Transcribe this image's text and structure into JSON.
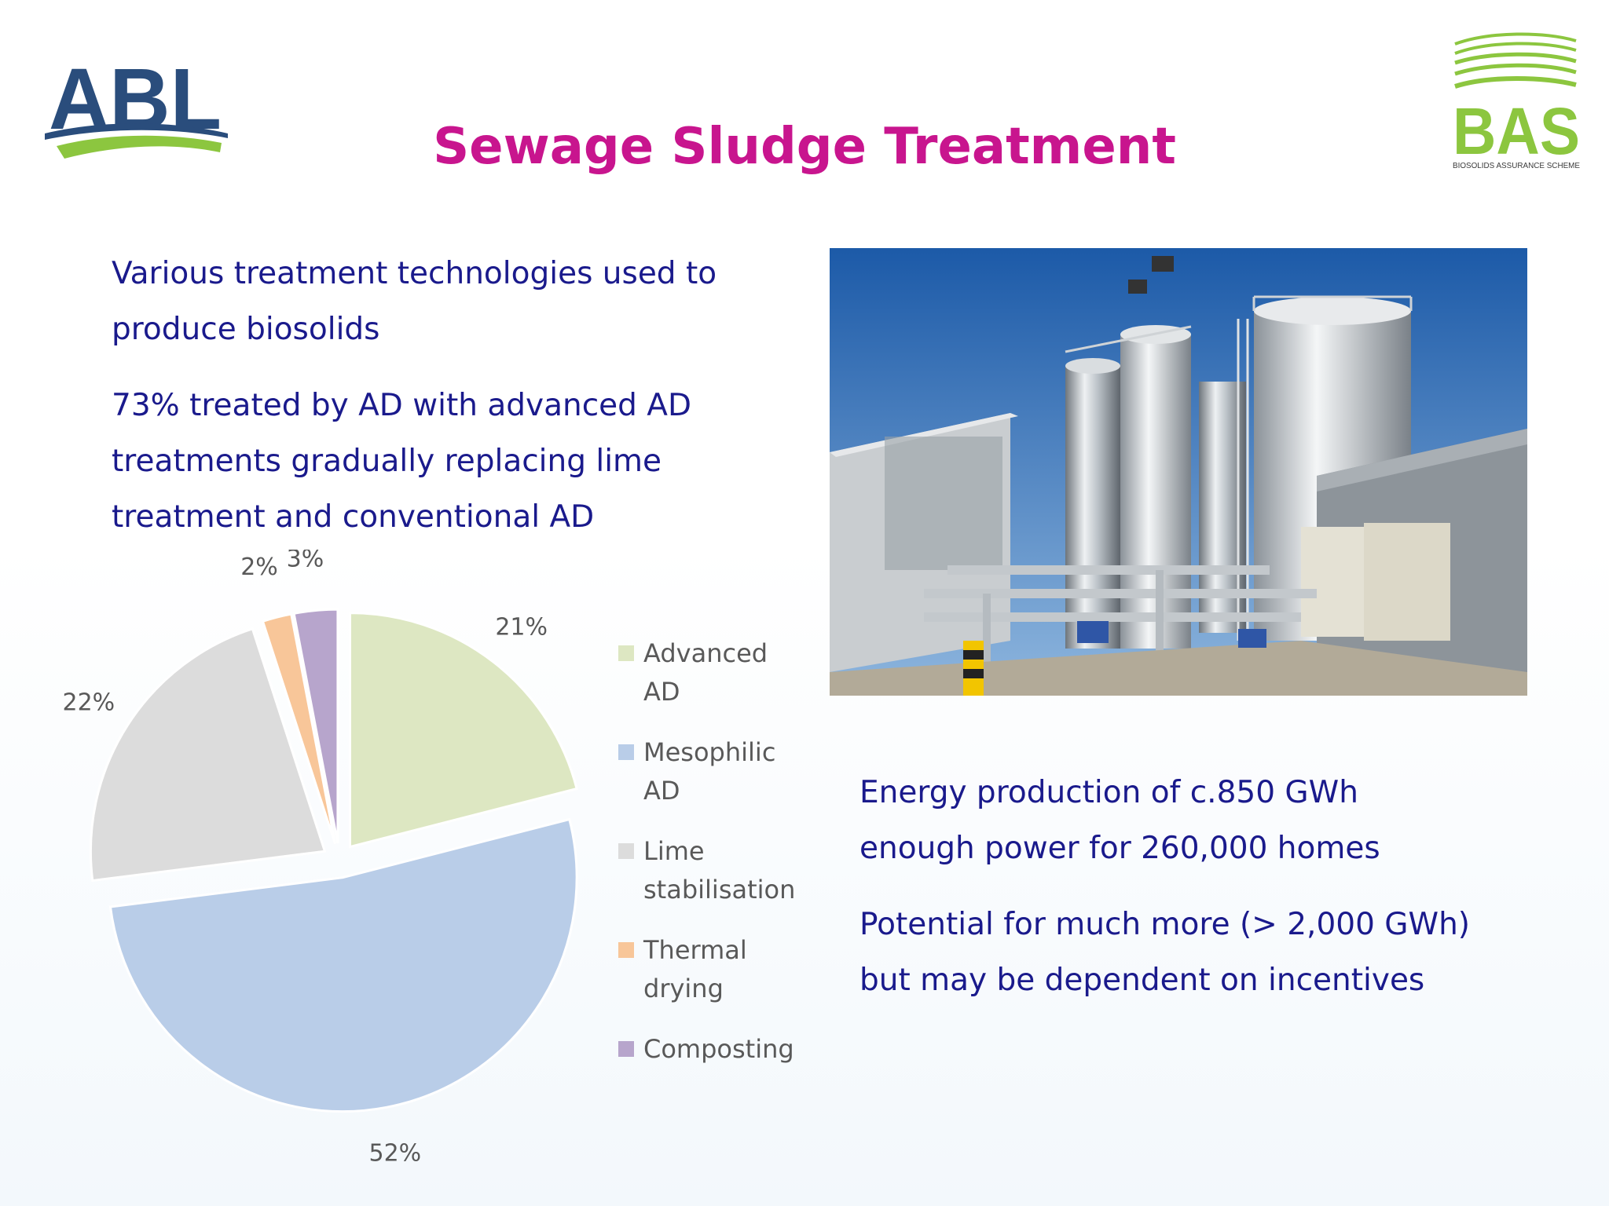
{
  "title": "Sewage Sludge Treatment",
  "logos": {
    "abl": {
      "text": "ABL",
      "colors": {
        "navy": "#2a4d7c",
        "green": "#8cc63f"
      }
    },
    "bas": {
      "text": "BAS",
      "tagline": "BIOSOLIDS ASSURANCE SCHEME",
      "colors": {
        "green": "#8cc63f",
        "dark": "#3a3a3a"
      }
    }
  },
  "left_text": {
    "p1": [
      "Various treatment technologies used to",
      "produce biosolids"
    ],
    "p2": [
      "73% treated by AD with advanced AD",
      "treatments gradually replacing lime",
      "treatment and conventional AD"
    ]
  },
  "right_text": {
    "p1": [
      "Energy production of c.850 GWh",
      "enough power for 260,000 homes"
    ],
    "p2": [
      "Potential for much more (> 2,000 GWh)",
      "but may be dependent on incentives"
    ]
  },
  "photo": {
    "icon": "sewage-treatment-plant-photo"
  },
  "colors": {
    "title": "#c8158e",
    "body_text": "#1a1a8c",
    "chart_text": "#595959"
  },
  "chart_data": {
    "type": "pie",
    "exploded": true,
    "start": "12 o'clock, clockwise",
    "legend_position": "right",
    "slices": [
      {
        "label": "Advanced AD",
        "legend_lines": [
          "Advanced",
          "AD"
        ],
        "value": 21,
        "display": "21%",
        "color": "#dde7c2"
      },
      {
        "label": "Mesophilic AD",
        "legend_lines": [
          "Mesophilic",
          "AD"
        ],
        "value": 52,
        "display": "52%",
        "color": "#b9cde8"
      },
      {
        "label": "Lime stabilisation",
        "legend_lines": [
          "Lime",
          "stabilisation"
        ],
        "value": 22,
        "display": "22%",
        "color": "#dcdcdc"
      },
      {
        "label": "Thermal drying",
        "legend_lines": [
          "Thermal",
          "drying"
        ],
        "value": 2,
        "display": "2%",
        "color": "#f8c699"
      },
      {
        "label": "Composting",
        "legend_lines": [
          "Composting"
        ],
        "value": 3,
        "display": "3%",
        "color": "#b7a5cc"
      }
    ]
  }
}
